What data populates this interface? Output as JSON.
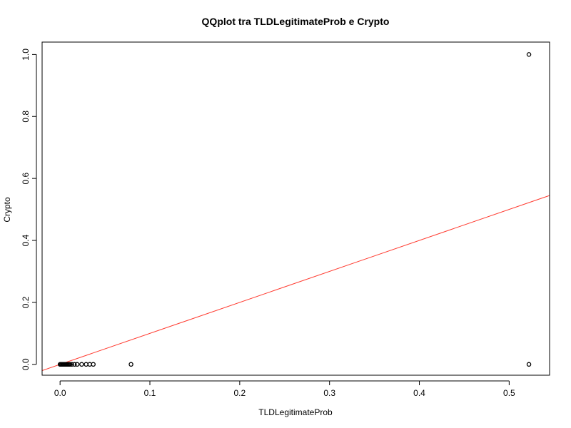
{
  "chart_data": {
    "type": "scatter",
    "title": "QQplot tra TLDLegitimateProb e Crypto",
    "xlabel": "TLDLegitimateProb",
    "ylabel": "Crypto",
    "xlim": [
      -0.02,
      0.545
    ],
    "ylim": [
      -0.035,
      1.04
    ],
    "xticks": [
      0.0,
      0.1,
      0.2,
      0.3,
      0.4,
      0.5
    ],
    "xtick_labels": [
      "0.0",
      "0.1",
      "0.2",
      "0.3",
      "0.4",
      "0.5"
    ],
    "yticks": [
      0.0,
      0.2,
      0.4,
      0.6,
      0.8,
      1.0
    ],
    "ytick_labels": [
      "0.0",
      "0.2",
      "0.4",
      "0.6",
      "0.8",
      "1.0"
    ],
    "points": [
      {
        "x": 0.0,
        "y": 0.0
      },
      {
        "x": 0.001,
        "y": 0.0
      },
      {
        "x": 0.002,
        "y": 0.0
      },
      {
        "x": 0.003,
        "y": 0.0
      },
      {
        "x": 0.004,
        "y": 0.0
      },
      {
        "x": 0.005,
        "y": 0.0
      },
      {
        "x": 0.006,
        "y": 0.0
      },
      {
        "x": 0.007,
        "y": 0.0
      },
      {
        "x": 0.008,
        "y": 0.0
      },
      {
        "x": 0.009,
        "y": 0.0
      },
      {
        "x": 0.01,
        "y": 0.0
      },
      {
        "x": 0.011,
        "y": 0.0
      },
      {
        "x": 0.013,
        "y": 0.0
      },
      {
        "x": 0.016,
        "y": 0.0
      },
      {
        "x": 0.019,
        "y": 0.0
      },
      {
        "x": 0.024,
        "y": 0.0
      },
      {
        "x": 0.029,
        "y": 0.0
      },
      {
        "x": 0.033,
        "y": 0.0
      },
      {
        "x": 0.037,
        "y": 0.0
      },
      {
        "x": 0.079,
        "y": 0.0
      },
      {
        "x": 0.522,
        "y": 0.0
      },
      {
        "x": 0.522,
        "y": 1.0
      }
    ],
    "reference_line": {
      "intercept": 0.0,
      "slope": 1.0,
      "color": "#ff3b30"
    },
    "point_color": "#000000",
    "grid": false
  }
}
